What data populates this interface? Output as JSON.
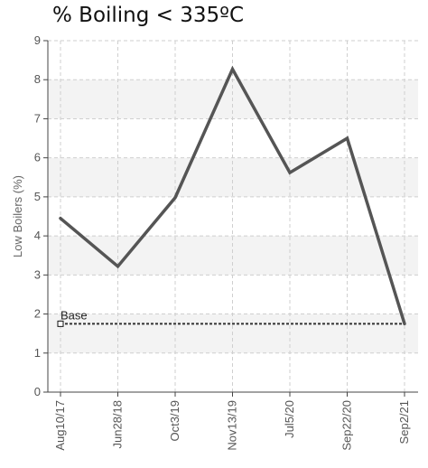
{
  "chart_data": {
    "type": "line",
    "title": "% Boiling < 335ºC",
    "ylabel": "Low Boilers (%)",
    "xlabel": "",
    "ylim": [
      0,
      9
    ],
    "yticks": [
      "0",
      "1",
      "2",
      "3",
      "4",
      "5",
      "6",
      "7",
      "8",
      "9"
    ],
    "categories": [
      "Aug10/17",
      "Jun28/18",
      "Oct3/19",
      "Nov13/19",
      "Jul5/20",
      "Sep22/20",
      "Sep2/21"
    ],
    "series": [
      {
        "values": [
          4.45,
          3.22,
          4.98,
          8.27,
          5.62,
          6.5,
          1.75
        ],
        "color": "#555555"
      }
    ],
    "reference_line": {
      "name": "Base",
      "value": 1.75,
      "color": "#333333"
    },
    "grid": true,
    "legend": "none"
  }
}
